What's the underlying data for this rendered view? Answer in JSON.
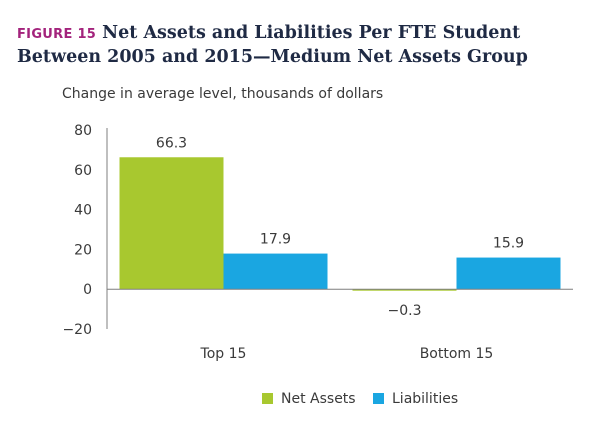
{
  "figure_label": "FIGURE 15",
  "title_line1": "Net Assets and Liabilities Per FTE Student",
  "title_line2": "Between 2005 and 2015—Medium Net Assets Group",
  "colors": {
    "net_assets": "#a8c82f",
    "liabilities": "#1aa6e1",
    "axis": "#7f7f7f",
    "text": "#3a3a3a",
    "title": "#1f2a44",
    "figure_label": "#a3237c"
  },
  "chart_data": {
    "type": "bar",
    "title": "Net Assets and Liabilities Per FTE Student Between 2005 and 2015—Medium Net Assets Group",
    "ylabel": "Change in average level, thousands of dollars",
    "xlabel": "",
    "categories": [
      "Top 15",
      "Bottom 15"
    ],
    "series": [
      {
        "name": "Net Assets",
        "values": [
          66.3,
          -0.3
        ],
        "labels": [
          "66.3",
          "−0.3"
        ]
      },
      {
        "name": "Liabilities",
        "values": [
          17.9,
          15.9
        ],
        "labels": [
          "17.9",
          "15.9"
        ]
      }
    ],
    "ylim": [
      -20,
      80
    ],
    "yticks": [
      80,
      60,
      40,
      20,
      0,
      -20
    ],
    "ytick_labels": [
      "80",
      "60",
      "40",
      "20",
      "0",
      "−20"
    ],
    "grid": false,
    "legend_position": "bottom-center"
  }
}
